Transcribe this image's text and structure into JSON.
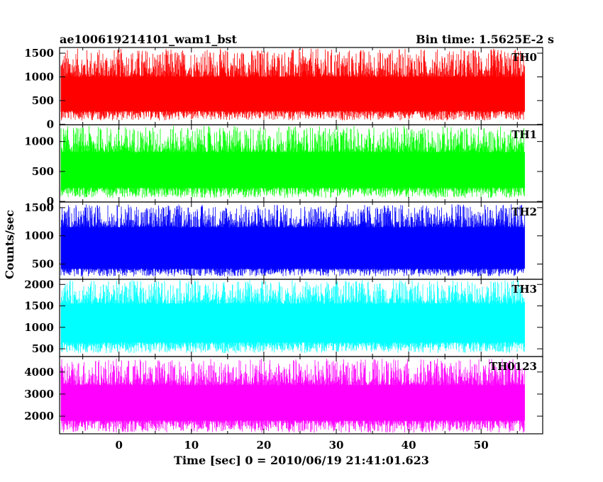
{
  "chart_data": {
    "type": "line",
    "title_left": "ae100619214101_wam1_bst",
    "title_right": "Bin time: 1.5625E-2 s",
    "xlabel": "Time [sec] 0 = 2010/06/19 21:41:01.623",
    "ylabel": "Counts/sec",
    "xlim": [
      -8.2,
      58.5
    ],
    "data_range": [
      -8.0,
      56.0
    ],
    "x_ticks": [
      0,
      10,
      20,
      30,
      40,
      50
    ],
    "x_tick_labels": [
      "0",
      "10",
      "20",
      "30",
      "40",
      "50"
    ],
    "panels": [
      {
        "name": "TH0",
        "color": "#ff0000",
        "ylim": [
          -10,
          1620
        ],
        "yticks": [
          0,
          500,
          1000,
          1500
        ],
        "ytick_labels": [
          "0",
          "500",
          "1000",
          "1500"
        ],
        "floor": 80,
        "band_low": 280,
        "band_high": 1000,
        "peak": 1600
      },
      {
        "name": "TH1",
        "color": "#00ff00",
        "ylim": [
          -10,
          1280
        ],
        "yticks": [
          0,
          500,
          1000
        ],
        "ytick_labels": [
          "0",
          "500",
          "1000"
        ],
        "floor": 60,
        "band_low": 230,
        "band_high": 820,
        "peak": 1260
      },
      {
        "name": "TH2",
        "color": "#0000ff",
        "ylim": [
          230,
          1600
        ],
        "yticks": [
          500,
          1000,
          1500
        ],
        "ytick_labels": [
          "500",
          "1000",
          "1500"
        ],
        "floor": 280,
        "band_low": 420,
        "band_high": 1150,
        "peak": 1560
      },
      {
        "name": "TH3",
        "color": "#00ffff",
        "ylim": [
          320,
          2120
        ],
        "yticks": [
          500,
          1000,
          1500,
          2000
        ],
        "ytick_labels": [
          "500",
          "1000",
          "1500",
          "2000"
        ],
        "floor": 400,
        "band_low": 650,
        "band_high": 1550,
        "peak": 2100
      },
      {
        "name": "TH0123",
        "color": "#ff00ff",
        "ylim": [
          1200,
          4700
        ],
        "yticks": [
          2000,
          3000,
          4000
        ],
        "ytick_labels": [
          "2000",
          "3000",
          "4000"
        ],
        "floor": 1250,
        "band_low": 1800,
        "band_high": 3400,
        "peak": 4600
      }
    ]
  }
}
